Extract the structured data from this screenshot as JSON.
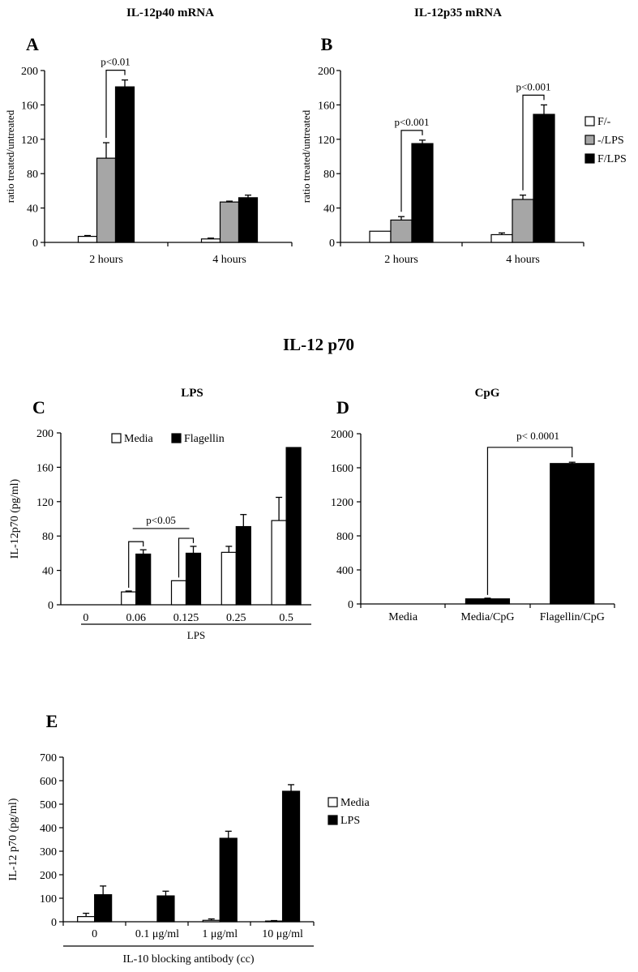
{
  "figure": {
    "section_title": "IL-12 p70"
  },
  "colors": {
    "black": "#000000",
    "gray": "#a6a6a6",
    "white": "#ffffff"
  },
  "chart_data": [
    {
      "id": "A",
      "letter": "A",
      "type": "bar",
      "title": "IL-12p40 mRNA",
      "ylabel": "ratio treated/untreated",
      "xlabel": "",
      "ylim": [
        0,
        200
      ],
      "yticks": [
        0,
        40,
        80,
        120,
        160,
        200
      ],
      "categories": [
        "2 hours",
        "4 hours"
      ],
      "series": [
        {
          "name": "F/-",
          "fill": "white",
          "values": [
            7,
            4
          ],
          "errors": [
            1,
            1
          ]
        },
        {
          "name": "-/LPS",
          "fill": "gray",
          "values": [
            98,
            47
          ],
          "errors": [
            18,
            1
          ]
        },
        {
          "name": "F/LPS",
          "fill": "black",
          "values": [
            181,
            52
          ],
          "errors": [
            8,
            3
          ]
        }
      ],
      "legend": false,
      "annotations": [
        {
          "text": "p<0.01",
          "category": 0,
          "from": 1,
          "to": 2
        }
      ]
    },
    {
      "id": "B",
      "letter": "B",
      "type": "bar",
      "title": "IL-12p35 mRNA",
      "ylabel": "ratio treated/untreated",
      "xlabel": "",
      "ylim": [
        0,
        200
      ],
      "yticks": [
        0,
        40,
        80,
        120,
        160,
        200
      ],
      "categories": [
        "2 hours",
        "4 hours"
      ],
      "series": [
        {
          "name": "F/-",
          "fill": "white",
          "values": [
            13,
            9
          ],
          "errors": [
            0,
            2
          ]
        },
        {
          "name": "-/LPS",
          "fill": "gray",
          "values": [
            26,
            50
          ],
          "errors": [
            4,
            5
          ]
        },
        {
          "name": "F/LPS",
          "fill": "black",
          "values": [
            115,
            149
          ],
          "errors": [
            4,
            11
          ]
        }
      ],
      "legend": true,
      "legend_position": "right",
      "annotations": [
        {
          "text": "p<0.001",
          "category": 0,
          "from": 1,
          "to": 2
        },
        {
          "text": "p<0.001",
          "category": 1,
          "from": 1,
          "to": 2
        }
      ]
    },
    {
      "id": "C",
      "letter": "C",
      "type": "bar",
      "title": "LPS",
      "ylabel": "IL-12p70 (pg/ml)",
      "xlabel": "LPS",
      "ylim": [
        0,
        200
      ],
      "yticks": [
        0,
        40,
        80,
        120,
        160,
        200
      ],
      "categories": [
        "0",
        "0.06",
        "0.125",
        "0.25",
        "0.5"
      ],
      "series": [
        {
          "name": "Media",
          "fill": "white",
          "values": [
            0,
            15,
            28,
            61,
            98
          ],
          "errors": [
            0,
            1,
            0,
            7,
            27
          ]
        },
        {
          "name": "Flagellin",
          "fill": "black",
          "values": [
            0,
            59,
            60,
            91,
            183
          ],
          "errors": [
            0,
            5,
            8,
            14,
            0
          ]
        }
      ],
      "legend": true,
      "legend_position": "top",
      "annotations": [
        {
          "text": "p<0.05",
          "categories": [
            1,
            2
          ]
        }
      ]
    },
    {
      "id": "D",
      "letter": "D",
      "type": "bar",
      "title": "CpG",
      "ylabel": "",
      "xlabel": "",
      "ylim": [
        0,
        2000
      ],
      "yticks": [
        0,
        400,
        800,
        1200,
        1600,
        2000
      ],
      "categories": [
        "Media",
        "Media/CpG",
        "Flagellin/CpG"
      ],
      "series": [
        {
          "name": "",
          "fill": "black",
          "values": [
            0,
            60,
            1650
          ],
          "errors": [
            0,
            8,
            15
          ]
        }
      ],
      "legend": false,
      "annotations": [
        {
          "text": "p< 0.0001",
          "from": 1,
          "to": 2
        }
      ]
    },
    {
      "id": "E",
      "letter": "E",
      "type": "bar",
      "title": "",
      "ylabel": "IL-12 p70 (pg/ml)",
      "xlabel": "IL-10 blocking antibody (cc)",
      "ylim": [
        0,
        700
      ],
      "yticks": [
        0,
        100,
        200,
        300,
        400,
        500,
        600,
        700
      ],
      "categories": [
        "0",
        "0.1 μg/ml",
        "1 μg/ml",
        "10 μg/ml"
      ],
      "series": [
        {
          "name": "Media",
          "fill": "white",
          "values": [
            22,
            0,
            6,
            3
          ],
          "errors": [
            14,
            0,
            6,
            2
          ]
        },
        {
          "name": "LPS",
          "fill": "black",
          "values": [
            115,
            110,
            355,
            555
          ],
          "errors": [
            37,
            20,
            30,
            28
          ]
        }
      ],
      "legend": true,
      "legend_position": "right"
    }
  ]
}
